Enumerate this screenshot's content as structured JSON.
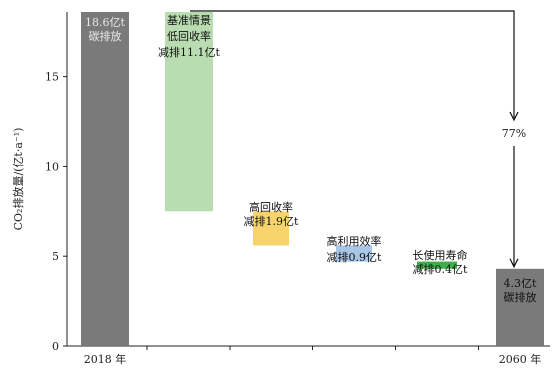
{
  "chart_data": {
    "type": "bar",
    "subtype": "waterfall",
    "ylabel": "CO₂排放量/(亿t·a⁻¹)",
    "ylim": [
      0,
      18.6
    ],
    "yticks": [
      0,
      5,
      10,
      15
    ],
    "categories": [
      "2018 年",
      "",
      "",
      "",
      "",
      "2060 年"
    ],
    "bars": [
      {
        "name": "start",
        "bottom": 0,
        "top": 18.6,
        "color": "#7a7a7a",
        "label_lines": [
          "18.6亿t",
          "碳排放"
        ],
        "label_color": "#e8e8e8"
      },
      {
        "name": "baseline-recycling",
        "bottom": 7.5,
        "top": 18.6,
        "color": "#b9ddb0",
        "label_lines": [
          "基准情景",
          "低回收率",
          "减排11.1亿t"
        ],
        "label_color": "#111111"
      },
      {
        "name": "high-recycling",
        "bottom": 5.6,
        "top": 7.5,
        "color": "#f6d36b",
        "label_lines": [
          "高回收率",
          "减排1.9亿t"
        ],
        "label_color": "#111111"
      },
      {
        "name": "high-efficiency",
        "bottom": 4.7,
        "top": 5.6,
        "color": "#a8c6e6",
        "label_lines": [
          "高利用效率",
          "减排0.9亿t"
        ],
        "label_color": "#111111"
      },
      {
        "name": "long-life",
        "bottom": 4.3,
        "top": 4.7,
        "color": "#3cae4a",
        "label_lines": [
          "长使用寿命",
          "减排0.4亿t"
        ],
        "label_color": "#111111"
      },
      {
        "name": "end",
        "bottom": 0,
        "top": 4.3,
        "color": "#7a7a7a",
        "label_lines": [
          "4.3亿t",
          "碳排放"
        ],
        "label_color": "#111111"
      }
    ],
    "reduction_annotation": "77%",
    "grid": false,
    "legend": "none"
  }
}
